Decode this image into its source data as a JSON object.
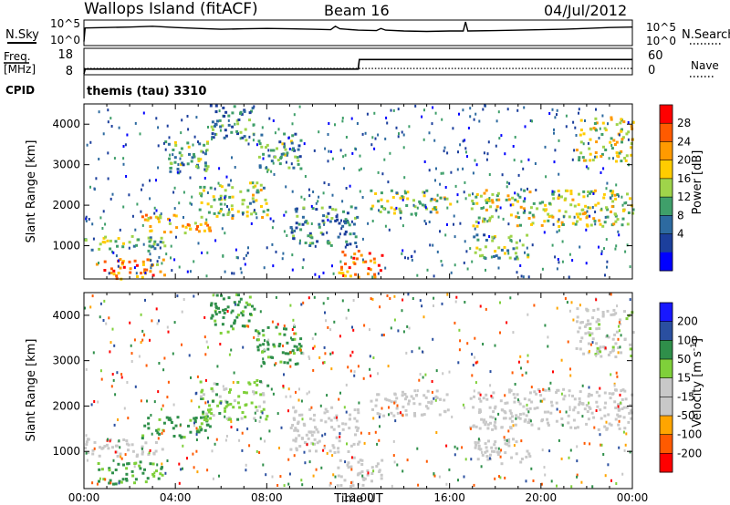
{
  "header": {
    "station": "Wallops Island (fitACF)",
    "beam": "Beam 16",
    "date": "04/Jul/2012"
  },
  "noise_panel": {
    "left_label": "N.Sky",
    "left_ticks": [
      "10^5",
      "10^0"
    ],
    "right_label": "N.Search",
    "right_ticks": [
      "10^5",
      "10^0"
    ],
    "sky_noise_log10": [
      [
        0.0,
        0.3
      ],
      [
        0.05,
        3.4
      ],
      [
        1,
        3.5
      ],
      [
        2,
        3.6
      ],
      [
        3,
        3.8
      ],
      [
        4,
        3.5
      ],
      [
        5,
        3.3
      ],
      [
        6,
        3.1
      ],
      [
        7,
        3.2
      ],
      [
        8,
        3.3
      ],
      [
        9,
        3.2
      ],
      [
        10,
        3.1
      ],
      [
        10.8,
        3.0
      ],
      [
        11,
        3.8
      ],
      [
        11.2,
        3.2
      ],
      [
        12,
        2.9
      ],
      [
        12.8,
        2.8
      ],
      [
        13,
        3.3
      ],
      [
        13.2,
        2.9
      ],
      [
        14,
        2.7
      ],
      [
        15,
        2.6
      ],
      [
        16,
        2.7
      ],
      [
        16.6,
        2.7
      ],
      [
        16.7,
        4.8
      ],
      [
        16.8,
        2.7
      ],
      [
        18,
        2.8
      ],
      [
        19,
        2.9
      ],
      [
        20,
        3.0
      ],
      [
        21,
        3.1
      ],
      [
        22,
        3.3
      ],
      [
        23,
        3.5
      ],
      [
        24,
        3.6
      ]
    ]
  },
  "freq_panel": {
    "left_label_1": "Freq.",
    "left_label_2": "[MHz]",
    "left_ticks": [
      "18",
      "8"
    ],
    "right_label": "Nave",
    "right_ticks": [
      "60",
      "0"
    ],
    "frequency_mhz": [
      [
        0,
        8
      ],
      [
        0.05,
        10.5
      ],
      [
        12,
        10.5
      ],
      [
        12.05,
        15.5
      ],
      [
        24,
        15.5
      ]
    ],
    "nave": [
      [
        0,
        4
      ],
      [
        5.3,
        4
      ],
      [
        5.31,
        -5
      ],
      [
        5.35,
        4
      ],
      [
        24,
        4
      ]
    ]
  },
  "cpid": {
    "label": "CPID",
    "value": "themis (tau) 3310"
  },
  "chart_data": [
    {
      "type": "heatmap",
      "title": "",
      "quantity": "Power",
      "xlabel": "",
      "ylabel": "Slant Range [km]",
      "xlim": [
        0,
        24
      ],
      "ylim": [
        180,
        4500
      ],
      "yticks": [
        1000,
        2000,
        3000,
        4000
      ],
      "colorbar": {
        "label": "Power [dB]",
        "ticks": [
          "28",
          "24",
          "20",
          "16",
          "12",
          "8",
          "4"
        ],
        "colors": [
          "#ff0000",
          "#ff5a00",
          "#ff9a00",
          "#ffcc00",
          "#9fd44a",
          "#3f9f6a",
          "#2d6aa0",
          "#1c3f9c",
          "#0000ff"
        ]
      },
      "echo_bands": [
        {
          "t": [
            0.0,
            3.5
          ],
          "r": [
            900,
            1300
          ],
          "v": 14
        },
        {
          "t": [
            0.5,
            3.5
          ],
          "r": [
            200,
            700
          ],
          "v": 24
        },
        {
          "t": [
            2.5,
            5.5
          ],
          "r": [
            1300,
            1800
          ],
          "v": 22
        },
        {
          "t": [
            5.0,
            8.0
          ],
          "r": [
            1700,
            2600
          ],
          "v": 16
        },
        {
          "t": [
            3.5,
            5.5
          ],
          "r": [
            2800,
            3600
          ],
          "v": 12
        },
        {
          "t": [
            5.5,
            7.5
          ],
          "r": [
            3600,
            4500
          ],
          "v": 10
        },
        {
          "t": [
            7.5,
            9.5
          ],
          "r": [
            2900,
            3800
          ],
          "v": 12
        },
        {
          "t": [
            9.0,
            12.0
          ],
          "r": [
            1000,
            2000
          ],
          "v": 10
        },
        {
          "t": [
            11.0,
            13.0
          ],
          "r": [
            250,
            900
          ],
          "v": 26
        },
        {
          "t": [
            12.5,
            16.0
          ],
          "r": [
            1800,
            2400
          ],
          "v": 16
        },
        {
          "t": [
            16.8,
            24.0
          ],
          "r": [
            1500,
            2400
          ],
          "v": 18
        },
        {
          "t": [
            17.0,
            19.5
          ],
          "r": [
            700,
            1300
          ],
          "v": 12
        },
        {
          "t": [
            21.5,
            24.0
          ],
          "r": [
            3100,
            4200
          ],
          "v": 18
        }
      ]
    },
    {
      "type": "heatmap",
      "title": "",
      "quantity": "Velocity",
      "xlabel": "Time UT",
      "ylabel": "Slant Range [km]",
      "xlim": [
        0,
        24
      ],
      "ylim": [
        180,
        4500
      ],
      "xticks": [
        "00:00",
        "04:00",
        "08:00",
        "12:00",
        "16:00",
        "20:00",
        "00:00"
      ],
      "yticks": [
        1000,
        2000,
        3000,
        4000
      ],
      "colorbar": {
        "label": "Velocity [m s^-1]",
        "ticks": [
          "200",
          "100",
          "50",
          "15",
          "-15",
          "-50",
          "-100",
          "-200"
        ],
        "colors": [
          "#1818ff",
          "#2a4fa0",
          "#2f8f4a",
          "#7fd03a",
          "#c8c8c8",
          "#c8c8c8",
          "#ffa500",
          "#ff5a00",
          "#ff0000"
        ]
      },
      "echo_bands": [
        {
          "t": [
            0.0,
            3.5
          ],
          "r": [
            900,
            1300
          ],
          "v": 0
        },
        {
          "t": [
            0.5,
            3.5
          ],
          "r": [
            300,
            800
          ],
          "v": 35
        },
        {
          "t": [
            2.5,
            5.5
          ],
          "r": [
            1300,
            1800
          ],
          "v": 40
        },
        {
          "t": [
            5.0,
            8.0
          ],
          "r": [
            1700,
            2600
          ],
          "v": 20
        },
        {
          "t": [
            5.5,
            7.5
          ],
          "r": [
            3600,
            4500
          ],
          "v": 40
        },
        {
          "t": [
            7.5,
            9.5
          ],
          "r": [
            2900,
            3800
          ],
          "v": 40
        },
        {
          "t": [
            9.0,
            12.0
          ],
          "r": [
            1000,
            2000
          ],
          "v": 0
        },
        {
          "t": [
            11.0,
            13.0
          ],
          "r": [
            250,
            900
          ],
          "v": 0
        },
        {
          "t": [
            12.5,
            16.0
          ],
          "r": [
            1800,
            2400
          ],
          "v": 0
        },
        {
          "t": [
            16.8,
            24.0
          ],
          "r": [
            1500,
            2400
          ],
          "v": 0
        },
        {
          "t": [
            17.0,
            19.5
          ],
          "r": [
            700,
            1300
          ],
          "v": 0
        },
        {
          "t": [
            21.5,
            24.0
          ],
          "r": [
            3100,
            4200
          ],
          "v": 5
        }
      ]
    }
  ]
}
